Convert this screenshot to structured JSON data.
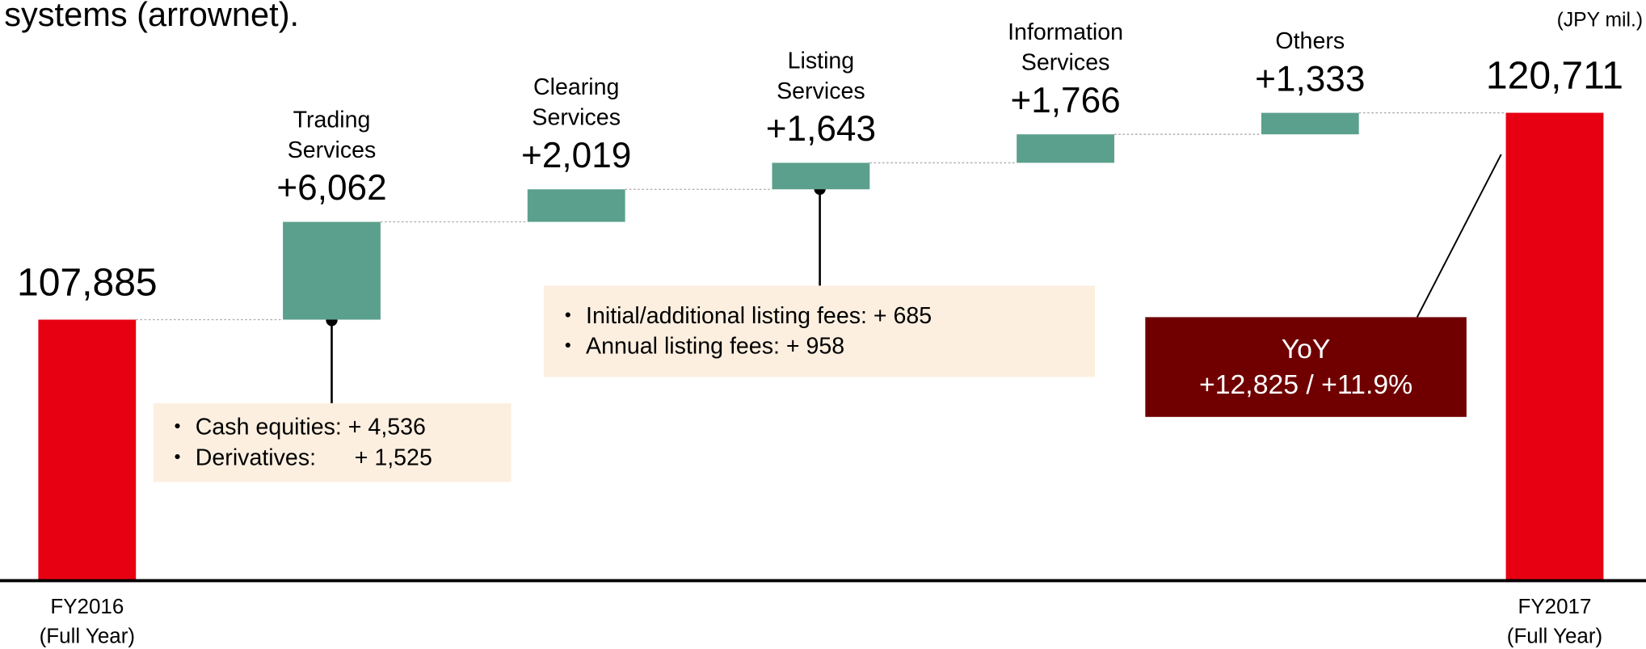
{
  "chart_data": {
    "type": "waterfall",
    "title": "systems (arrownet).",
    "unit_label": "(JPY mil.)",
    "categories": [
      [
        "FY2016",
        "(Full Year)"
      ],
      [
        "Trading",
        "Services"
      ],
      [
        "Clearing",
        "Services"
      ],
      [
        "Listing",
        "Services"
      ],
      [
        "Information",
        "Services"
      ],
      [
        "Others"
      ],
      [
        "FY2017",
        "(Full Year)"
      ]
    ],
    "values": [
      107885,
      6062,
      2019,
      1643,
      1766,
      1333,
      120711
    ],
    "value_labels": [
      "107,885",
      "+6,062",
      "+2,019",
      "+1,643",
      "+1,766",
      "+1,333",
      "120,711"
    ],
    "is_total": [
      true,
      false,
      false,
      false,
      false,
      false,
      true
    ],
    "total_color": "#e60012",
    "increase_color": "#5ba08c",
    "ylim": [
      91700,
      127700
    ],
    "annotations": {
      "trading": [
        "・ Cash equities: + 4,536",
        "・ Derivatives:      + 1,525"
      ],
      "listing": [
        "・ Initial/additional listing fees: + 685",
        "・ Annual listing fees: + 958"
      ],
      "yoy": [
        "YoY",
        "+12,825 / +11.9%"
      ]
    }
  }
}
